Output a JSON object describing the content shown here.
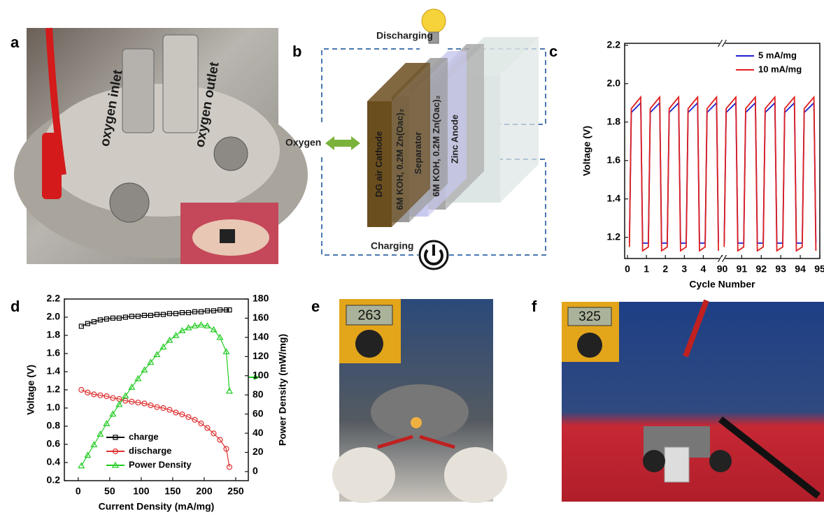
{
  "panels": {
    "a": {
      "label": "a",
      "annotations": [
        "oxygen inlet",
        "oxygen outlet"
      ]
    },
    "b": {
      "label": "b",
      "top": "Discharging",
      "left": "Oxygen",
      "bottom": "Charging",
      "layers": [
        "DG air Cathode",
        "6M KOH, 0.2M Zn(Oac)₂",
        "Separator",
        "6M KOH, 0.2M Zn(Oac)₂",
        "Zinc Anode"
      ]
    },
    "e": {
      "label": "e",
      "display": "263"
    },
    "f": {
      "label": "f",
      "display": "325"
    }
  },
  "chart_data": [
    {
      "type": "line",
      "label": "c",
      "y_label": "Voltage (V)",
      "x_label": "Cycle Number",
      "x": [
        0.1,
        0.2,
        0.7,
        0.8,
        1.1,
        1.2,
        1.7,
        1.8,
        2.1,
        2.2,
        2.7,
        2.8,
        3.1,
        3.2,
        3.7,
        3.8,
        4.1,
        4.2,
        4.7,
        4.8,
        5,
        90.1,
        90.2,
        90.7,
        90.8,
        91.1,
        91.2,
        91.7,
        91.8,
        92.1,
        92.2,
        92.7,
        92.8,
        93.1,
        93.2,
        93.7,
        93.8,
        94.1,
        94.2,
        94.7,
        94.8
      ],
      "series": [
        {
          "name": "5 mA/mg",
          "color": "#1f1fd0",
          "values": [
            1.17,
            1.85,
            1.9,
            1.17,
            1.17,
            1.85,
            1.9,
            1.17,
            1.17,
            1.85,
            1.9,
            1.17,
            1.17,
            1.85,
            1.9,
            1.17,
            1.17,
            1.85,
            1.9,
            1.17,
            null,
            1.17,
            1.85,
            1.9,
            1.17,
            1.17,
            1.85,
            1.9,
            1.17,
            1.17,
            1.85,
            1.9,
            1.17,
            1.17,
            1.85,
            1.9,
            1.17,
            1.17,
            1.85,
            1.9,
            1.17
          ]
        },
        {
          "name": "10 mA/mg",
          "color": "#e02020",
          "values": [
            1.15,
            1.87,
            1.93,
            1.13,
            1.15,
            1.87,
            1.93,
            1.13,
            1.15,
            1.87,
            1.93,
            1.13,
            1.15,
            1.87,
            1.93,
            1.13,
            1.15,
            1.87,
            1.93,
            1.13,
            null,
            1.15,
            1.87,
            1.93,
            1.13,
            1.15,
            1.87,
            1.93,
            1.13,
            1.15,
            1.87,
            1.93,
            1.13,
            1.15,
            1.87,
            1.93,
            1.13,
            1.15,
            1.87,
            1.93,
            1.13
          ]
        }
      ],
      "xlim": [
        -0.15,
        95
      ],
      "x_break": [
        5,
        90
      ],
      "xticks": [
        0,
        1,
        2,
        3,
        4,
        90,
        91,
        92,
        93,
        94,
        95
      ],
      "ylim": [
        1.09,
        2.21
      ],
      "yticks": [
        1.2,
        1.4,
        1.6,
        1.8,
        {
          "value": 2,
          "label": "2.0"
        },
        2.2
      ],
      "legend": "upper right"
    },
    {
      "type": "line",
      "label": "d",
      "y_label": "Voltage (V)",
      "y2_label": "Power Density (mW/mg)",
      "x_label": "Current Density (mA/mg)",
      "x": [
        5,
        15,
        25,
        35,
        45,
        55,
        65,
        75,
        85,
        95,
        105,
        115,
        125,
        135,
        145,
        155,
        165,
        175,
        185,
        195,
        205,
        215,
        225,
        235,
        240
      ],
      "series": [
        {
          "name": "charge",
          "color": "#000000",
          "marker": "square",
          "values": [
            1.9,
            1.93,
            1.95,
            1.97,
            1.98,
            1.99,
            1.99,
            2.0,
            2.01,
            2.01,
            2.02,
            2.02,
            2.03,
            2.03,
            2.04,
            2.04,
            2.05,
            2.05,
            2.06,
            2.06,
            2.07,
            2.07,
            2.08,
            2.08,
            2.08
          ]
        },
        {
          "name": "discharge",
          "color": "#e03030",
          "marker": "circle",
          "values": [
            1.2,
            1.17,
            1.15,
            1.14,
            1.13,
            1.11,
            1.1,
            1.08,
            1.07,
            1.06,
            1.05,
            1.03,
            1.01,
            1.0,
            0.98,
            0.95,
            0.93,
            0.9,
            0.87,
            0.83,
            0.78,
            0.72,
            0.65,
            0.55,
            0.35
          ]
        },
        {
          "name": "Power Density",
          "color": "#22cc22",
          "marker": "triangle",
          "axis": "y2",
          "values": [
            6,
            17,
            28,
            39,
            50,
            60,
            70,
            79,
            88,
            97,
            106,
            114,
            122,
            130,
            137,
            142,
            147,
            150,
            152,
            153,
            152,
            148,
            140,
            125,
            84
          ]
        }
      ],
      "xlim": [
        -22,
        270
      ],
      "xticks": [
        0,
        50,
        100,
        150,
        200,
        250
      ],
      "ylim": [
        0.2,
        2.2
      ],
      "yticks": [
        0.2,
        0.4,
        0.6,
        0.8,
        {
          "value": 1,
          "label": "1.0"
        },
        1.2,
        1.4,
        1.6,
        1.8,
        {
          "value": 2,
          "label": "2.0"
        },
        2.2
      ],
      "y2lim": [
        -9.5,
        180
      ],
      "y2ticks": [
        0,
        20,
        40,
        60,
        80,
        100,
        120,
        140,
        160,
        180
      ],
      "legend": "lower center"
    }
  ]
}
